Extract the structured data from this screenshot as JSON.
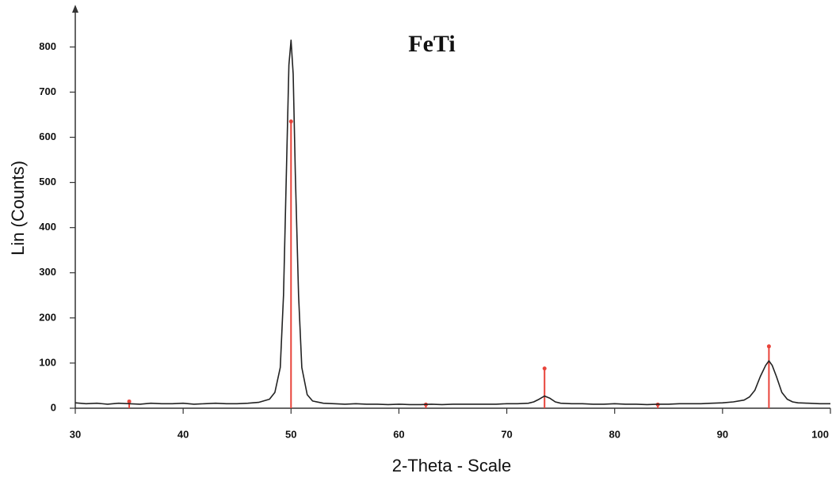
{
  "chart_data": {
    "type": "line",
    "title": "FeTi",
    "xlabel": "2-Theta - Scale",
    "ylabel": "Lin (Counts)",
    "xlim": [
      30,
      100
    ],
    "ylim": [
      0,
      890
    ],
    "xticks": [
      30,
      40,
      50,
      60,
      70,
      80,
      90,
      100
    ],
    "yticks": [
      0,
      100,
      200,
      300,
      400,
      500,
      600,
      700,
      800
    ],
    "x": [
      30,
      31,
      32,
      33,
      34,
      35,
      36,
      37,
      38,
      39,
      40,
      41,
      42,
      43,
      44,
      45,
      46,
      47,
      48,
      48.5,
      49,
      49.3,
      49.6,
      49.8,
      50,
      50.2,
      50.4,
      50.7,
      51,
      51.5,
      52,
      53,
      54,
      55,
      56,
      57,
      58,
      59,
      60,
      61,
      62,
      63,
      64,
      65,
      66,
      67,
      68,
      69,
      70,
      71,
      72,
      72.5,
      73,
      73.5,
      74,
      74.5,
      75,
      76,
      77,
      78,
      79,
      80,
      81,
      82,
      83,
      84,
      85,
      86,
      87,
      88,
      89,
      90,
      91,
      92,
      92.5,
      93,
      93.5,
      94,
      94.3,
      94.6,
      95,
      95.5,
      96,
      96.5,
      97,
      98,
      99,
      100
    ],
    "series": [
      {
        "color": "#222222",
        "values": [
          12,
          10,
          11,
          9,
          11,
          10,
          9,
          11,
          10,
          10,
          11,
          9,
          10,
          11,
          10,
          10,
          11,
          13,
          20,
          35,
          90,
          250,
          550,
          760,
          815,
          740,
          520,
          250,
          90,
          30,
          16,
          11,
          10,
          9,
          10,
          9,
          9,
          8,
          9,
          8,
          8,
          9,
          8,
          9,
          9,
          9,
          9,
          9,
          10,
          10,
          11,
          14,
          20,
          27,
          22,
          14,
          11,
          10,
          10,
          9,
          9,
          10,
          9,
          9,
          8,
          9,
          9,
          10,
          10,
          10,
          11,
          12,
          14,
          18,
          25,
          40,
          70,
          95,
          105,
          95,
          70,
          35,
          20,
          14,
          12,
          11,
          10,
          10
        ]
      }
    ],
    "reference_peaks": {
      "color": "#e8433a",
      "x": [
        35,
        50,
        62.5,
        73.5,
        84,
        94.3
      ],
      "values": [
        15,
        635,
        8,
        88,
        8,
        137
      ]
    }
  }
}
